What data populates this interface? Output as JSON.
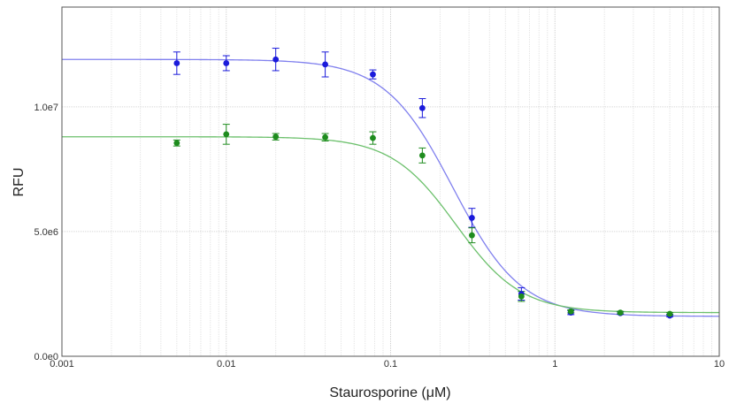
{
  "chart_data": {
    "type": "scatter",
    "xlabel": "Staurosporine (μM)",
    "ylabel": "RFU",
    "x_scale": "log",
    "xlim": [
      0.001,
      10
    ],
    "ylim": [
      0,
      14000000
    ],
    "x_ticks": [
      {
        "value": 0.001,
        "label": "0.001"
      },
      {
        "value": 0.01,
        "label": "0.01"
      },
      {
        "value": 0.1,
        "label": "0.1"
      },
      {
        "value": 1,
        "label": "1"
      },
      {
        "value": 10,
        "label": "10"
      }
    ],
    "y_ticks": [
      {
        "value": 0,
        "label": "0.0e0"
      },
      {
        "value": 5000000,
        "label": "5.0e6"
      },
      {
        "value": 10000000,
        "label": "1.0e7"
      }
    ],
    "grid": true,
    "legend": "none",
    "series": [
      {
        "color": "#1a1adb",
        "fit_color": "#8080ee",
        "fit": {
          "top": 11900000,
          "bottom": 1600000,
          "ec50": 0.24,
          "hill": 2.1
        },
        "points": [
          {
            "x": 0.005,
            "y": 11750000,
            "err": 450000
          },
          {
            "x": 0.01,
            "y": 11750000,
            "err": 300000
          },
          {
            "x": 0.02,
            "y": 11900000,
            "err": 450000
          },
          {
            "x": 0.04,
            "y": 11700000,
            "err": 500000
          },
          {
            "x": 0.078,
            "y": 11300000,
            "err": 180000
          },
          {
            "x": 0.156,
            "y": 9950000,
            "err": 380000
          },
          {
            "x": 0.3125,
            "y": 5550000,
            "err": 380000
          },
          {
            "x": 0.625,
            "y": 2500000,
            "err": 250000
          },
          {
            "x": 1.25,
            "y": 1750000,
            "err": 80000
          },
          {
            "x": 2.5,
            "y": 1730000,
            "err": 50000
          },
          {
            "x": 5,
            "y": 1630000,
            "err": 50000
          }
        ]
      },
      {
        "color": "#1e8c1e",
        "fit_color": "#6cc06c",
        "fit": {
          "top": 8800000,
          "bottom": 1750000,
          "ec50": 0.25,
          "hill": 2.2
        },
        "points": [
          {
            "x": 0.005,
            "y": 8550000,
            "err": 120000
          },
          {
            "x": 0.01,
            "y": 8900000,
            "err": 400000
          },
          {
            "x": 0.02,
            "y": 8800000,
            "err": 130000
          },
          {
            "x": 0.04,
            "y": 8780000,
            "err": 150000
          },
          {
            "x": 0.078,
            "y": 8750000,
            "err": 250000
          },
          {
            "x": 0.156,
            "y": 8050000,
            "err": 300000
          },
          {
            "x": 0.3125,
            "y": 4850000,
            "err": 300000
          },
          {
            "x": 0.625,
            "y": 2400000,
            "err": 200000
          },
          {
            "x": 1.25,
            "y": 1800000,
            "err": 60000
          },
          {
            "x": 2.5,
            "y": 1750000,
            "err": 50000
          },
          {
            "x": 5,
            "y": 1700000,
            "err": 50000
          }
        ]
      }
    ]
  }
}
